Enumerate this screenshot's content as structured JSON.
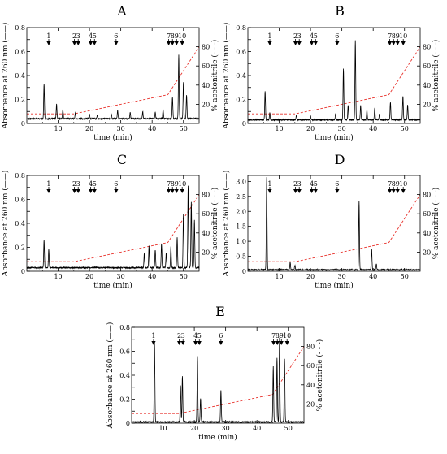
{
  "chart_data": [
    {
      "type": "line",
      "panel": "A",
      "xlabel": "time (min)",
      "ylabel": "Absorbance at 260 nm (——)",
      "y2label": "% acetonitrile (- - -)",
      "xlim": [
        0,
        55
      ],
      "ylim": [
        0,
        0.8
      ],
      "y2lim": [
        0,
        100
      ],
      "xticks": [
        "10",
        "20",
        "30",
        "40",
        "50"
      ],
      "yticks": [
        "0",
        "0.1",
        "0.2",
        "0.3",
        "0.4",
        "0.5",
        "0.6",
        "0.7",
        "0.8"
      ],
      "y2ticks": [
        "20",
        "40",
        "60",
        "80"
      ],
      "peak_markers": [
        {
          "label": "1",
          "x": 7
        },
        {
          "label": "2",
          "x": 15.2
        },
        {
          "label": "3",
          "x": 16.4
        },
        {
          "label": "4",
          "x": 20.4
        },
        {
          "label": "5",
          "x": 21.6
        },
        {
          "label": "6",
          "x": 28.5
        },
        {
          "label": "7",
          "x": 45.3
        },
        {
          "label": "8",
          "x": 46.5
        },
        {
          "label": "9",
          "x": 47.8
        },
        {
          "label": "10",
          "x": 49.6
        }
      ],
      "acetonitrile": {
        "x": [
          0,
          15,
          45,
          55
        ],
        "y": [
          10,
          10,
          30,
          80
        ]
      },
      "peaks": [
        {
          "x": 5.5,
          "h": 0.29
        },
        {
          "x": 9.5,
          "h": 0.12
        },
        {
          "x": 11.5,
          "h": 0.08
        },
        {
          "x": 15.5,
          "h": 0.05
        },
        {
          "x": 20,
          "h": 0.04
        },
        {
          "x": 22.5,
          "h": 0.03
        },
        {
          "x": 27,
          "h": 0.04
        },
        {
          "x": 29,
          "h": 0.07
        },
        {
          "x": 33,
          "h": 0.05
        },
        {
          "x": 37,
          "h": 0.06
        },
        {
          "x": 41,
          "h": 0.05
        },
        {
          "x": 43.5,
          "h": 0.08
        },
        {
          "x": 46.5,
          "h": 0.18
        },
        {
          "x": 48.5,
          "h": 0.53
        },
        {
          "x": 50,
          "h": 0.3
        },
        {
          "x": 51,
          "h": 0.2
        }
      ],
      "baseline": 0.04
    },
    {
      "type": "line",
      "panel": "B",
      "xlabel": "time (min)",
      "ylabel": "Absorbance at 260 nm (——)",
      "y2label": "% acetonitrile (- - -)",
      "xlim": [
        0,
        55
      ],
      "ylim": [
        0,
        0.8
      ],
      "y2lim": [
        0,
        100
      ],
      "xticks": [
        "10",
        "20",
        "30",
        "40",
        "50"
      ],
      "yticks": [
        "0",
        "0.1",
        "0.2",
        "0.3",
        "0.4",
        "0.5",
        "0.6",
        "0.7",
        "0.8"
      ],
      "y2ticks": [
        "20",
        "40",
        "60",
        "80"
      ],
      "peak_markers": [
        {
          "label": "1",
          "x": 7
        },
        {
          "label": "2",
          "x": 15.2
        },
        {
          "label": "3",
          "x": 16.4
        },
        {
          "label": "4",
          "x": 20.4
        },
        {
          "label": "5",
          "x": 21.6
        },
        {
          "label": "6",
          "x": 28.5
        },
        {
          "label": "7",
          "x": 45.3
        },
        {
          "label": "8",
          "x": 46.5
        },
        {
          "label": "9",
          "x": 47.8
        },
        {
          "label": "10",
          "x": 49.6
        }
      ],
      "acetonitrile": {
        "x": [
          0,
          15,
          45,
          55
        ],
        "y": [
          10,
          10,
          30,
          80
        ]
      },
      "peaks": [
        {
          "x": 5.5,
          "h": 0.24
        },
        {
          "x": 7,
          "h": 0.06
        },
        {
          "x": 15.5,
          "h": 0.04
        },
        {
          "x": 20,
          "h": 0.03
        },
        {
          "x": 28,
          "h": 0.05
        },
        {
          "x": 30.5,
          "h": 0.43
        },
        {
          "x": 32,
          "h": 0.12
        },
        {
          "x": 34.3,
          "h": 0.66
        },
        {
          "x": 36,
          "h": 0.12
        },
        {
          "x": 38,
          "h": 0.08
        },
        {
          "x": 40.5,
          "h": 0.1
        },
        {
          "x": 42,
          "h": 0.05
        },
        {
          "x": 45.5,
          "h": 0.15
        },
        {
          "x": 49.5,
          "h": 0.2
        },
        {
          "x": 51,
          "h": 0.12
        }
      ],
      "baseline": 0.03
    },
    {
      "type": "line",
      "panel": "C",
      "xlabel": "time (min)",
      "ylabel": "Absorbance at 260 nm (——)",
      "y2label": "% acetonitrile (- - -)",
      "xlim": [
        0,
        55
      ],
      "ylim": [
        0,
        0.8
      ],
      "y2lim": [
        0,
        100
      ],
      "xticks": [
        "10",
        "20",
        "30",
        "40",
        "50"
      ],
      "yticks": [
        "0",
        "0.1",
        "0.2",
        "0.3",
        "0.4",
        "0.5",
        "0.6",
        "0.7",
        "0.8"
      ],
      "y2ticks": [
        "20",
        "40",
        "60",
        "80"
      ],
      "peak_markers": [
        {
          "label": "1",
          "x": 7
        },
        {
          "label": "2",
          "x": 15.2
        },
        {
          "label": "3",
          "x": 16.4
        },
        {
          "label": "4",
          "x": 20.4
        },
        {
          "label": "5",
          "x": 21.6
        },
        {
          "label": "6",
          "x": 28.5
        },
        {
          "label": "7",
          "x": 45.3
        },
        {
          "label": "8",
          "x": 46.5
        },
        {
          "label": "9",
          "x": 47.8
        },
        {
          "label": "10",
          "x": 49.6
        }
      ],
      "acetonitrile": {
        "x": [
          0,
          15,
          45,
          55
        ],
        "y": [
          10,
          10,
          30,
          80
        ]
      },
      "peaks": [
        {
          "x": 5.5,
          "h": 0.23
        },
        {
          "x": 7,
          "h": 0.15
        },
        {
          "x": 37.5,
          "h": 0.12
        },
        {
          "x": 39,
          "h": 0.18
        },
        {
          "x": 41,
          "h": 0.15
        },
        {
          "x": 43,
          "h": 0.2
        },
        {
          "x": 44.5,
          "h": 0.12
        },
        {
          "x": 46,
          "h": 0.18
        },
        {
          "x": 48,
          "h": 0.25
        },
        {
          "x": 50,
          "h": 0.45
        },
        {
          "x": 51.5,
          "h": 0.68
        },
        {
          "x": 52.5,
          "h": 0.55
        },
        {
          "x": 53.5,
          "h": 0.4
        }
      ],
      "baseline": 0.03
    },
    {
      "type": "line",
      "panel": "D",
      "xlabel": "time (min)",
      "ylabel": "Absorbance at 260 nm (——)",
      "y2label": "% acetonitrile (- - -)",
      "xlim": [
        0,
        55
      ],
      "ylim": [
        0,
        3.2
      ],
      "y2lim": [
        0,
        100
      ],
      "xticks": [
        "10",
        "20",
        "30",
        "40",
        "50"
      ],
      "yticks": [
        "0",
        "0.5",
        "1.0",
        "1.5",
        "2.0",
        "2.5",
        "3.0"
      ],
      "y2ticks": [
        "20",
        "40",
        "60",
        "80"
      ],
      "peak_markers": [
        {
          "label": "1",
          "x": 7
        },
        {
          "label": "2",
          "x": 15.2
        },
        {
          "label": "3",
          "x": 16.4
        },
        {
          "label": "4",
          "x": 20.4
        },
        {
          "label": "5",
          "x": 21.6
        },
        {
          "label": "6",
          "x": 28.5
        },
        {
          "label": "7",
          "x": 45.3
        },
        {
          "label": "8",
          "x": 46.5
        },
        {
          "label": "9",
          "x": 47.8
        },
        {
          "label": "10",
          "x": 49.6
        }
      ],
      "acetonitrile": {
        "x": [
          0,
          15,
          45,
          55
        ],
        "y": [
          10,
          10,
          30,
          80
        ]
      },
      "peaks": [
        {
          "x": 6,
          "h": 3.1
        },
        {
          "x": 13.5,
          "h": 0.25
        },
        {
          "x": 15,
          "h": 0.15
        },
        {
          "x": 35.5,
          "h": 2.3
        },
        {
          "x": 39.5,
          "h": 0.7
        },
        {
          "x": 41,
          "h": 0.2
        }
      ],
      "baseline": 0.05
    },
    {
      "type": "line",
      "panel": "E",
      "xlabel": "time (min)",
      "ylabel": "Absorbance at 260 nm (——)",
      "y2label": "% acetonitrile (- - -)",
      "xlim": [
        0,
        55
      ],
      "ylim": [
        0,
        0.8
      ],
      "y2lim": [
        0,
        100
      ],
      "xticks": [
        "10",
        "20",
        "30",
        "40",
        "50"
      ],
      "yticks": [
        "0",
        "0.1",
        "0.2",
        "0.3",
        "0.4",
        "0.5",
        "0.6",
        "0.7",
        "0.8"
      ],
      "y2ticks": [
        "20",
        "40",
        "60",
        "80"
      ],
      "peak_markers": [
        {
          "label": "1",
          "x": 7
        },
        {
          "label": "2",
          "x": 15.2
        },
        {
          "label": "3",
          "x": 16.4
        },
        {
          "label": "4",
          "x": 20.4
        },
        {
          "label": "5",
          "x": 21.6
        },
        {
          "label": "6",
          "x": 28.5
        },
        {
          "label": "7",
          "x": 45.3
        },
        {
          "label": "8",
          "x": 46.5
        },
        {
          "label": "9",
          "x": 47.8
        },
        {
          "label": "10",
          "x": 49.6
        }
      ],
      "acetonitrile": {
        "x": [
          0,
          15,
          45,
          55
        ],
        "y": [
          10,
          10,
          30,
          80
        ]
      },
      "peaks": [
        {
          "x": 7.3,
          "h": 0.66
        },
        {
          "x": 15.6,
          "h": 0.3
        },
        {
          "x": 16.2,
          "h": 0.38
        },
        {
          "x": 21,
          "h": 0.55
        },
        {
          "x": 22,
          "h": 0.2
        },
        {
          "x": 28.5,
          "h": 0.26
        },
        {
          "x": 45.2,
          "h": 0.46
        },
        {
          "x": 46.4,
          "h": 0.53
        },
        {
          "x": 47.2,
          "h": 0.7
        },
        {
          "x": 48.8,
          "h": 0.53
        }
      ],
      "baseline": 0.01
    }
  ],
  "colors": {
    "trace": "#000000",
    "acetonitrile": "#e8322c",
    "axis": "#000000"
  }
}
